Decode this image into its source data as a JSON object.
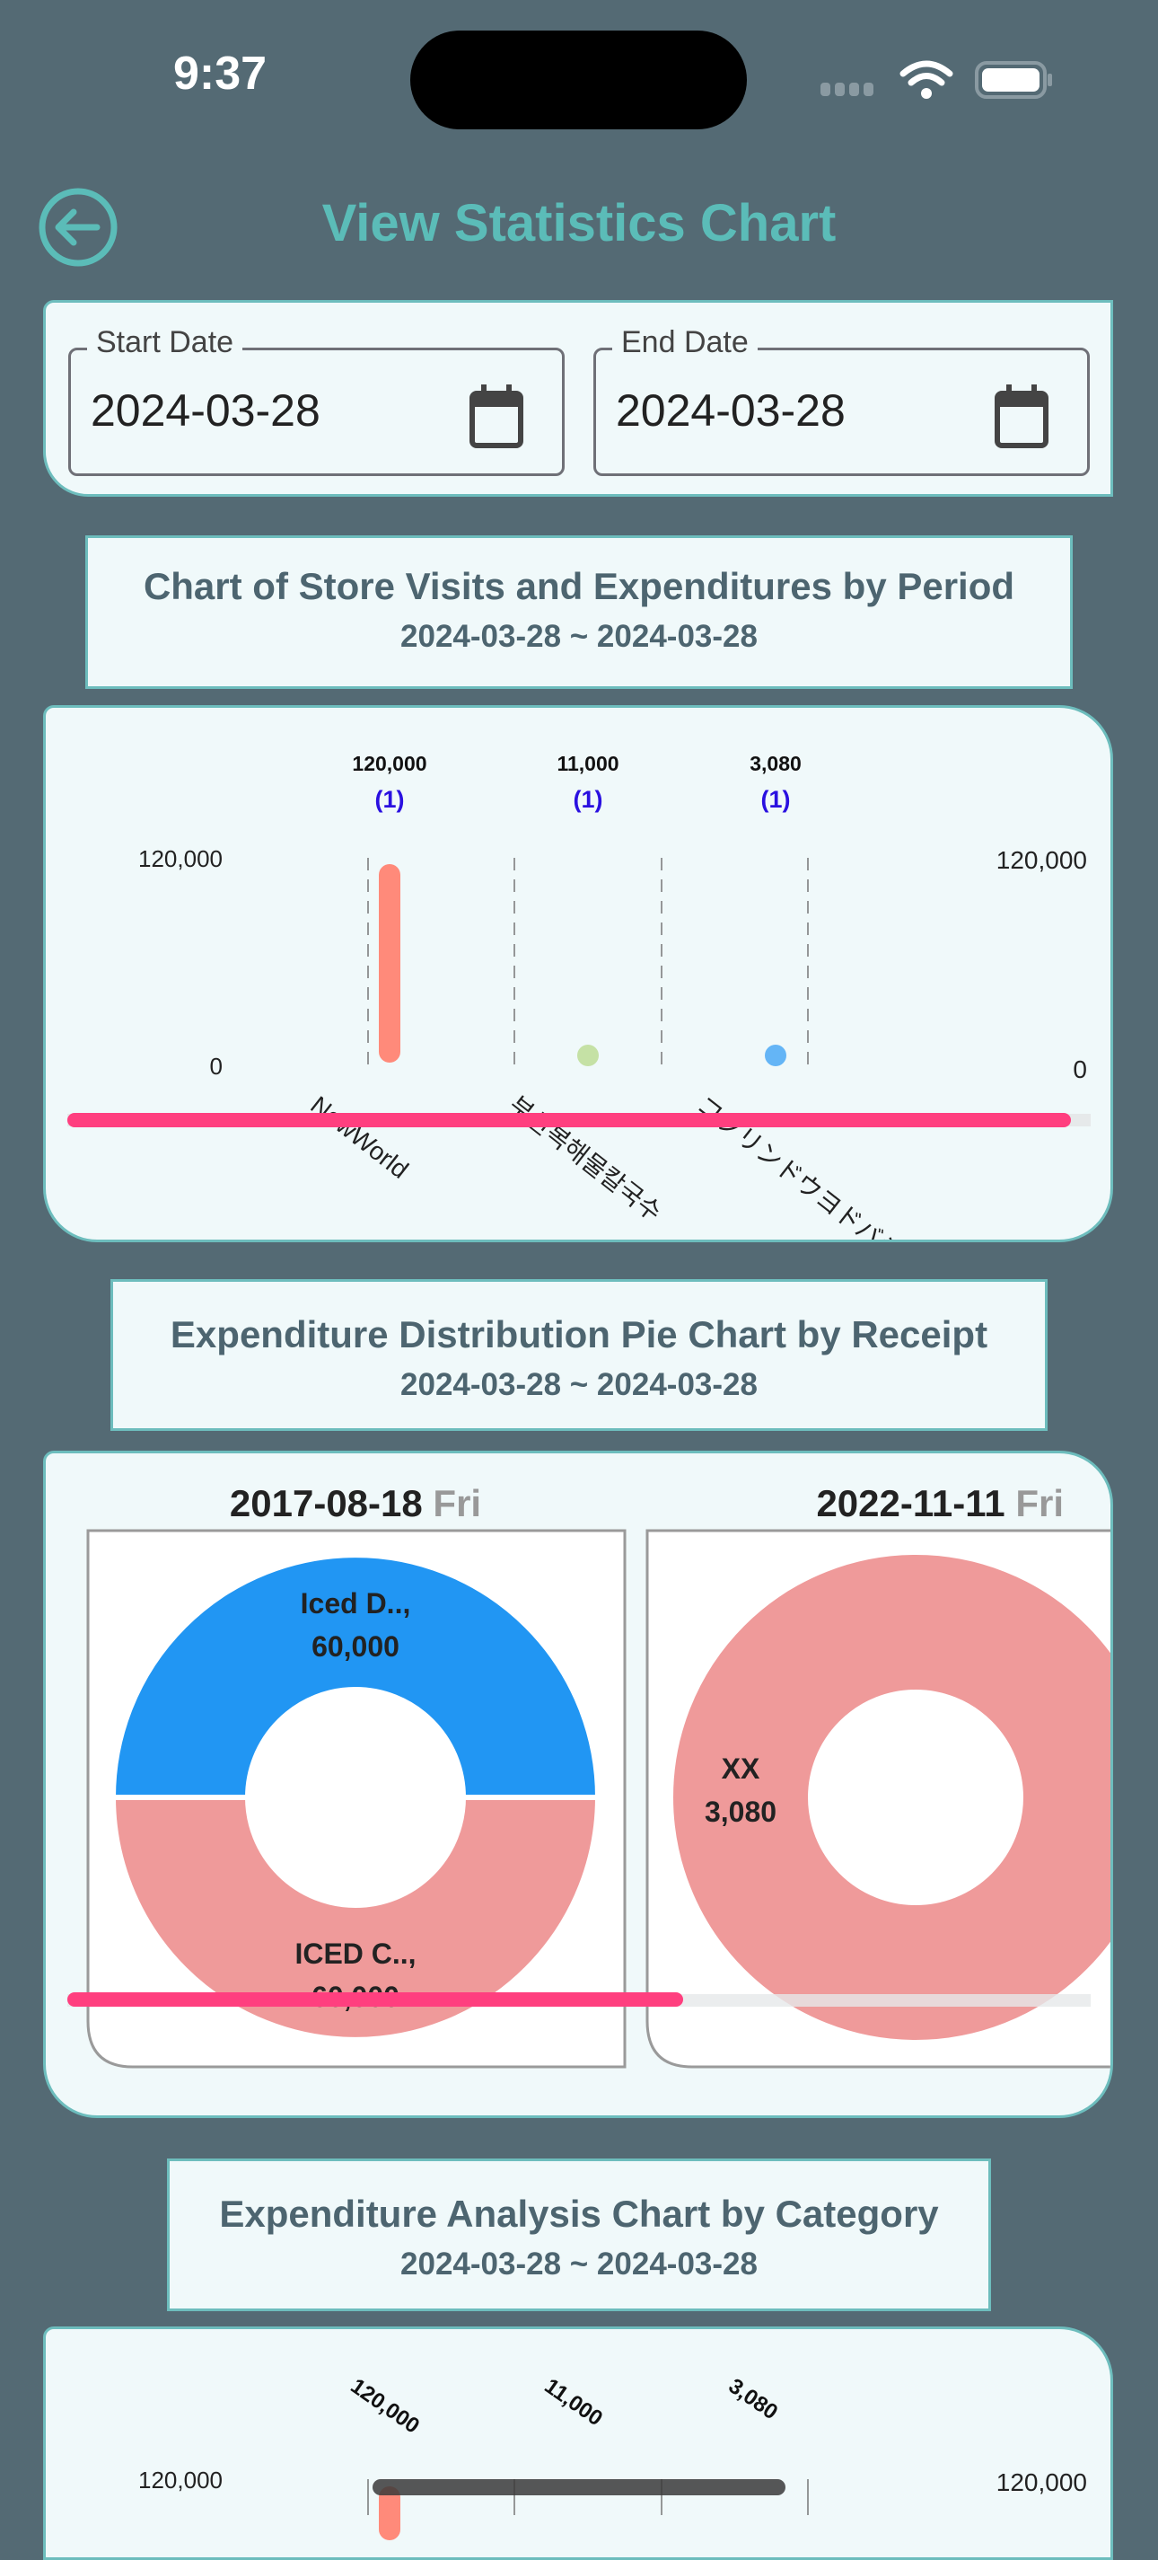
{
  "status_bar": {
    "time": "9:37"
  },
  "header": {
    "title": "View Statistics Chart",
    "back_icon": "arrow-left-circle-icon"
  },
  "filters": {
    "start": {
      "label": "Start Date",
      "value": "2024-03-28"
    },
    "end": {
      "label": "End Date",
      "value": "2024-03-28"
    }
  },
  "colors": {
    "accent": "#5bbcb8",
    "background": "#546a74",
    "card": "#f0f9fa",
    "scrollbar": "#ff3f7f"
  },
  "sections": [
    {
      "title": "Chart of Store Visits and Expenditures by Period",
      "range": "2024-03-28 ~ 2024-03-28"
    },
    {
      "title": "Expenditure Distribution Pie Chart by Receipt",
      "range": "2024-03-28 ~ 2024-03-28"
    },
    {
      "title": "Expenditure Analysis Chart by Category",
      "range": "2024-03-28 ~ 2024-03-28"
    }
  ],
  "chart_data": [
    {
      "type": "bar",
      "categories": [
        "NewWorld",
        "부산복해물칼국수",
        "コクリンドウヨドバシ"
      ],
      "values": [
        120000,
        11000,
        3080
      ],
      "value_labels": [
        "120,000",
        "11,000",
        "3,080"
      ],
      "counts": [
        "(1)",
        "(1)",
        "(1)"
      ],
      "colors": [
        "#ff8a7a",
        "#c5e1a5",
        "#64b5f6"
      ],
      "ylim": [
        0,
        120000
      ],
      "left_ticks": [
        "120,000",
        "0"
      ],
      "right_ticks": [
        "120,000",
        "0"
      ],
      "grid": "vertical-dashed"
    },
    {
      "type": "pie",
      "charts": [
        {
          "date": "2017-08-18",
          "weekday": "Fri",
          "slices": [
            {
              "label": "Iced D..,",
              "value": 60000,
              "value_label": "60,000",
              "color": "#2196f3"
            },
            {
              "label": "ICED C..,",
              "value": 60000,
              "value_label": "60,000",
              "color": "#ef9a9a"
            }
          ]
        },
        {
          "date": "2022-11-11",
          "weekday": "Fri",
          "slices": [
            {
              "label": "XX",
              "value": 3080,
              "value_label": "3,080",
              "color": "#ef9a9a"
            }
          ]
        }
      ]
    },
    {
      "type": "bar",
      "value_labels": [
        "120,000",
        "11,000",
        "3,080"
      ],
      "values": [
        120000,
        11000,
        3080
      ],
      "left_ticks": [
        "120,000"
      ],
      "right_ticks": [
        "120,000"
      ]
    }
  ]
}
